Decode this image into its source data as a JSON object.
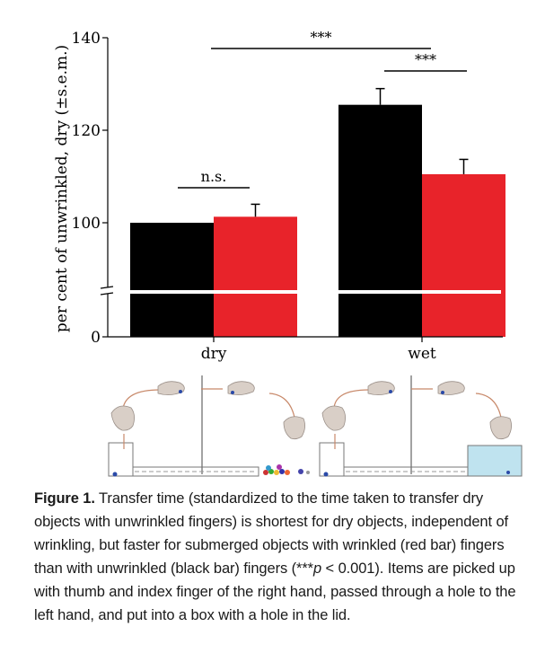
{
  "chart_data": {
    "type": "bar",
    "ylabel": "per cent of unwrinkled, dry (±s.e.m.)",
    "yticks": [
      0,
      100,
      120,
      140
    ],
    "axis_break": true,
    "ylim_upper": [
      85,
      140
    ],
    "categories": [
      "dry",
      "wet"
    ],
    "series": [
      {
        "values": [
          100,
          125.5
        ],
        "errors": [
          0,
          3.5
        ],
        "color": "#000000"
      },
      {
        "values": [
          101.3,
          110.5
        ],
        "errors": [
          2.7,
          3.2
        ],
        "color": "#e8232a"
      }
    ],
    "annotations": [
      {
        "text": "n.s.",
        "between": "dry-black / dry-red"
      },
      {
        "text": "***",
        "between": "wet-black / wet-red"
      },
      {
        "text": "***",
        "between": "dry-red / wet-red"
      }
    ]
  },
  "caption": {
    "label": "Figure 1.",
    "text_before_p": " Transfer time (standardized to the time taken to transfer dry objects with unwrinkled fingers) is shortest for dry objects, independent of wrinkling, but faster for submerged objects with wrinkled (red bar) fingers than with unwrinkled (black bar) fingers (***",
    "p_symbol": "p",
    "text_after_p": " < 0.001). Items are picked up with thumb and index finger of the right hand, passed through a hole to the left hand, and put into a box with a hole in the lid."
  }
}
